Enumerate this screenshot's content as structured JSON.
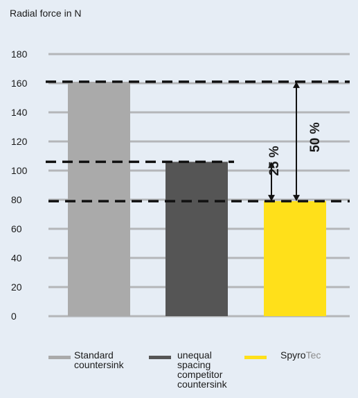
{
  "chart_data": {
    "type": "bar",
    "ylabel": "Radial force in N",
    "ylim": [
      0,
      180
    ],
    "yticks": [
      0,
      20,
      40,
      60,
      80,
      100,
      120,
      140,
      160,
      180
    ],
    "grid": true,
    "categories": [
      "Standard countersink",
      "unequal spacing competitor countersink",
      "SpyroTec"
    ],
    "values": [
      161,
      106,
      79
    ],
    "colors": [
      "#aaaaaa",
      "#555555",
      "#ffe01a"
    ],
    "reference_lines": [
      161,
      106,
      79
    ],
    "annotations": [
      "25 %",
      "50 %"
    ],
    "legend": {
      "placement": "bottom",
      "entries": [
        {
          "lines": [
            "Standard",
            "countersink"
          ],
          "color": "#aaaaaa"
        },
        {
          "lines": [
            "unequal",
            "spacing",
            "competitor",
            "countersink"
          ],
          "color": "#555555"
        },
        {
          "bold_part": "Spyro",
          "light_part": "Tec",
          "color": "#ffe01a"
        }
      ]
    }
  }
}
